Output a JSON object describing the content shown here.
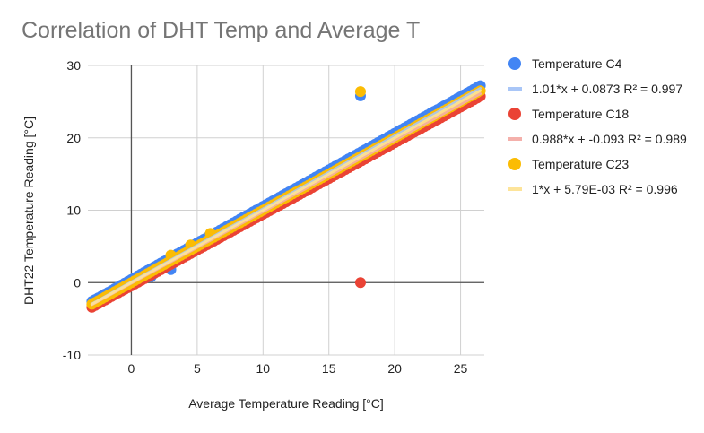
{
  "chart_data": {
    "type": "scatter",
    "title": "Correlation of DHT Temp and Average T",
    "xlabel": "Average Temperature Reading [°C]",
    "ylabel": "DHT22 Temperature Reading [°C]",
    "xlim": [
      -3.3,
      26.8
    ],
    "ylim": [
      -10,
      30
    ],
    "xticks": [
      0,
      5,
      10,
      15,
      20,
      25
    ],
    "yticks": [
      -10,
      0,
      10,
      20,
      30
    ],
    "grid": true,
    "legend_position": "right",
    "series": [
      {
        "name": "Temperature C4",
        "color": "#4285f4",
        "trend_color": "#a9c6f7",
        "trendline": {
          "slope": 1.01,
          "intercept": 0.0873,
          "r2": 0.997,
          "label": "1.01*x + 0.0873 R² = 0.997"
        },
        "x_range": [
          -3,
          26.5
        ],
        "outliers": [
          {
            "x": 17.4,
            "y": 25.8
          },
          {
            "x": 3,
            "y": 1.8
          },
          {
            "x": 1.5,
            "y": 0.8
          }
        ]
      },
      {
        "name": "Temperature C18",
        "color": "#ea4335",
        "trend_color": "#f4b0ab",
        "trendline": {
          "slope": 0.988,
          "intercept": -0.093,
          "r2": 0.989,
          "label": "0.988*x + -0.093 R² = 0.989"
        },
        "x_range": [
          -3,
          26.5
        ],
        "outliers": [
          {
            "x": 17.4,
            "y": 0
          }
        ]
      },
      {
        "name": "Temperature C23",
        "color": "#fbbc04",
        "trend_color": "#fde49a",
        "trendline": {
          "slope": 1,
          "intercept": 0.00579,
          "r2": 0.996,
          "label": "1*x + 5.79E-03 R² = 0.996"
        },
        "x_range": [
          -3,
          26.5
        ],
        "outliers": [
          {
            "x": 17.4,
            "y": 26.4
          },
          {
            "x": 3,
            "y": 3.8
          },
          {
            "x": 6,
            "y": 6.8
          },
          {
            "x": 4.5,
            "y": 5.2
          }
        ]
      }
    ]
  }
}
